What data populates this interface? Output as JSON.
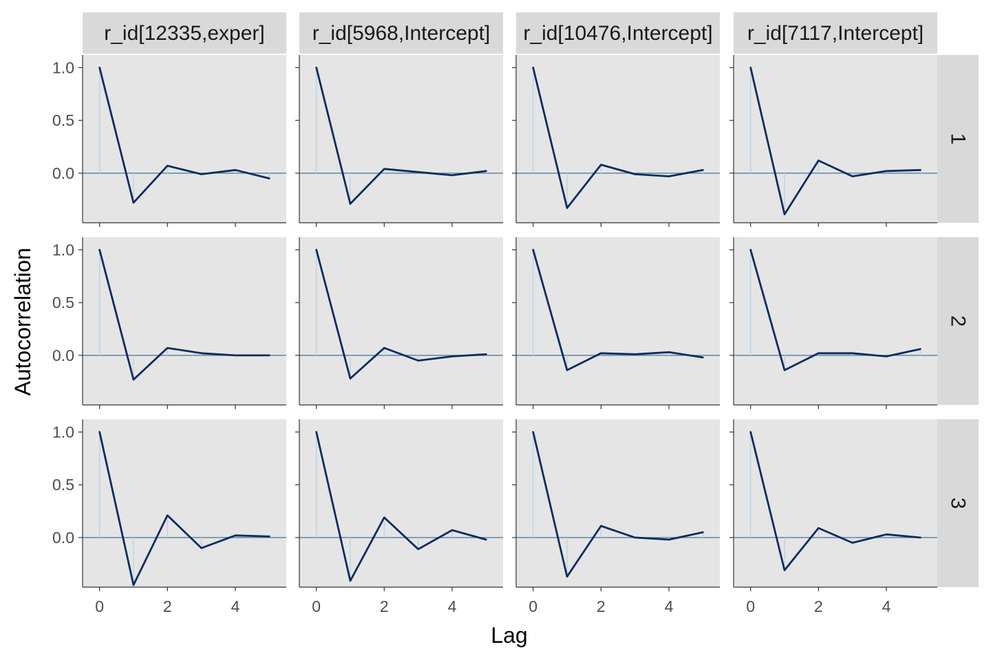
{
  "chart_data": {
    "type": "line",
    "xlabel": "Lag",
    "ylabel": "Autocorrelation",
    "columns": [
      "r_id[12335,exper]",
      "r_id[5968,Intercept]",
      "r_id[10476,Intercept]",
      "r_id[7117,Intercept]"
    ],
    "rows": [
      "1",
      "2",
      "3"
    ],
    "x": [
      0,
      1,
      2,
      3,
      4,
      5
    ],
    "xticks": [
      0,
      2,
      4
    ],
    "yticks": [
      0.0,
      0.5,
      1.0
    ],
    "ytick_labels": [
      "0.0",
      "0.5",
      "1.0"
    ],
    "ylim": [
      -0.47,
      1.12
    ],
    "xlim": [
      -0.5,
      5.5
    ],
    "colors": {
      "panel_bg": "#e5e5e5",
      "strip_bg": "#d9d9d9",
      "line": "#0b2c5e",
      "zero_line": "#5c87a8",
      "bar": "#bcd4e6"
    },
    "panels": [
      [
        {
          "row": "1",
          "column": "r_id[12335,exper]",
          "values": [
            1.0,
            -0.28,
            0.07,
            -0.01,
            0.03,
            -0.05
          ]
        },
        {
          "row": "1",
          "column": "r_id[5968,Intercept]",
          "values": [
            1.0,
            -0.29,
            0.04,
            0.01,
            -0.02,
            0.02
          ]
        },
        {
          "row": "1",
          "column": "r_id[10476,Intercept]",
          "values": [
            1.0,
            -0.33,
            0.08,
            -0.01,
            -0.03,
            0.03
          ]
        },
        {
          "row": "1",
          "column": "r_id[7117,Intercept]",
          "values": [
            1.0,
            -0.39,
            0.12,
            -0.03,
            0.02,
            0.03
          ]
        }
      ],
      [
        {
          "row": "2",
          "column": "r_id[12335,exper]",
          "values": [
            1.0,
            -0.23,
            0.07,
            0.02,
            0.0,
            0.0
          ]
        },
        {
          "row": "2",
          "column": "r_id[5968,Intercept]",
          "values": [
            1.0,
            -0.22,
            0.07,
            -0.05,
            -0.01,
            0.01
          ]
        },
        {
          "row": "2",
          "column": "r_id[10476,Intercept]",
          "values": [
            1.0,
            -0.14,
            0.02,
            0.01,
            0.03,
            -0.02
          ]
        },
        {
          "row": "2",
          "column": "r_id[7117,Intercept]",
          "values": [
            1.0,
            -0.14,
            0.02,
            0.02,
            -0.01,
            0.06
          ]
        }
      ],
      [
        {
          "row": "3",
          "column": "r_id[12335,exper]",
          "values": [
            1.0,
            -0.45,
            0.21,
            -0.1,
            0.02,
            0.01
          ]
        },
        {
          "row": "3",
          "column": "r_id[5968,Intercept]",
          "values": [
            1.0,
            -0.41,
            0.19,
            -0.11,
            0.07,
            -0.02
          ]
        },
        {
          "row": "3",
          "column": "r_id[10476,Intercept]",
          "values": [
            1.0,
            -0.37,
            0.11,
            0.0,
            -0.02,
            0.05
          ]
        },
        {
          "row": "3",
          "column": "r_id[7117,Intercept]",
          "values": [
            1.0,
            -0.31,
            0.09,
            -0.05,
            0.03,
            0.0
          ]
        }
      ]
    ]
  }
}
